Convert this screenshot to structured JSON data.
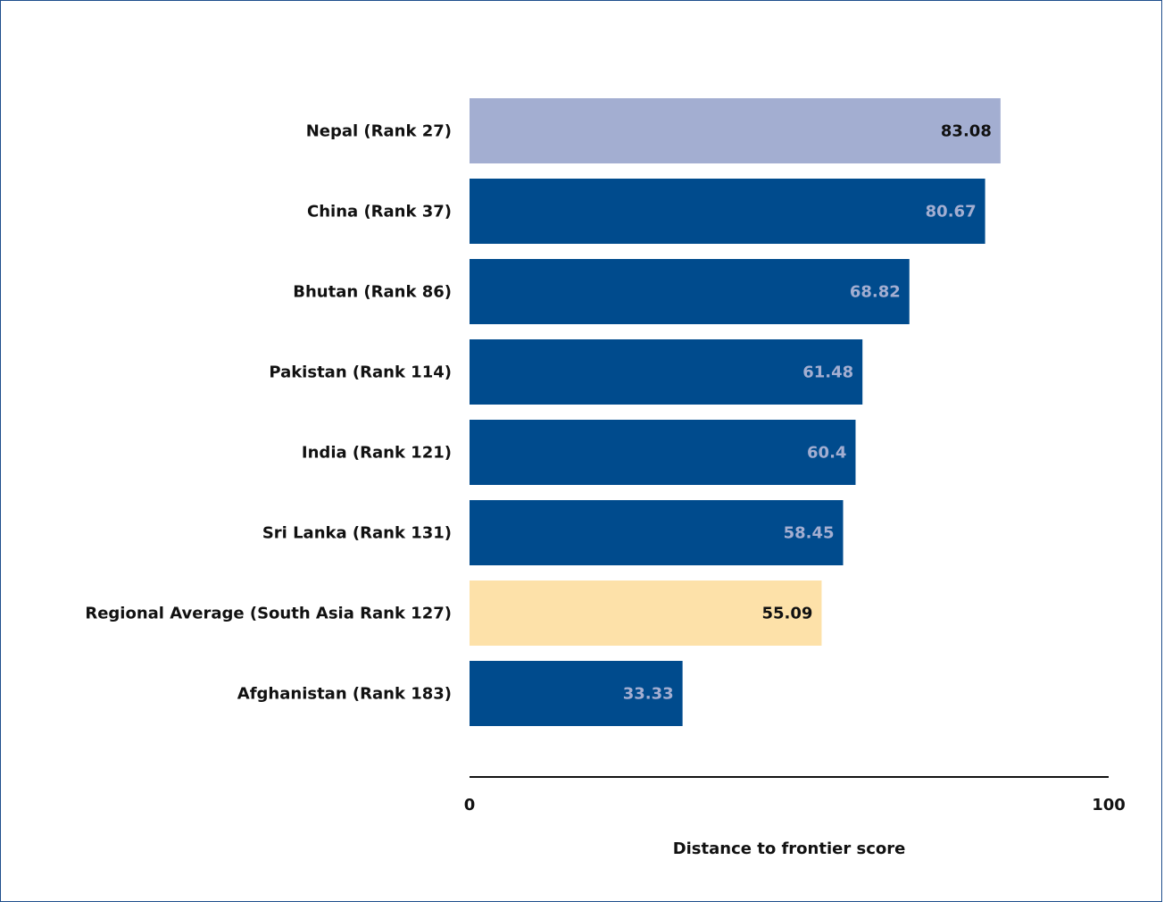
{
  "chart_data": {
    "type": "bar",
    "orientation": "horizontal",
    "categories": [
      "Nepal (Rank 27)",
      "China (Rank 37)",
      "Bhutan (Rank 86)",
      "Pakistan (Rank 114)",
      "India (Rank 121)",
      "Sri Lanka (Rank 131)",
      "Regional Average (South Asia Rank 127)",
      "Afghanistan (Rank 183)"
    ],
    "values": [
      83.08,
      80.67,
      68.82,
      61.48,
      60.4,
      58.45,
      55.09,
      33.33
    ],
    "value_labels": [
      "83.08",
      "80.67",
      "68.82",
      "61.48",
      "60.4",
      "58.45",
      "55.09",
      "33.33"
    ],
    "bar_colors": [
      "#a3aed1",
      "#004b8d",
      "#004b8d",
      "#004b8d",
      "#004b8d",
      "#004b8d",
      "#fde1a9",
      "#004b8d"
    ],
    "label_colors": [
      "#111111",
      "#a3aed1",
      "#a3aed1",
      "#a3aed1",
      "#a3aed1",
      "#a3aed1",
      "#111111",
      "#a3aed1"
    ],
    "xlim": [
      0,
      100
    ],
    "x_ticks": [
      "0",
      "100"
    ],
    "xlabel": "Distance to frontier score",
    "grid": false,
    "legend": "none"
  }
}
